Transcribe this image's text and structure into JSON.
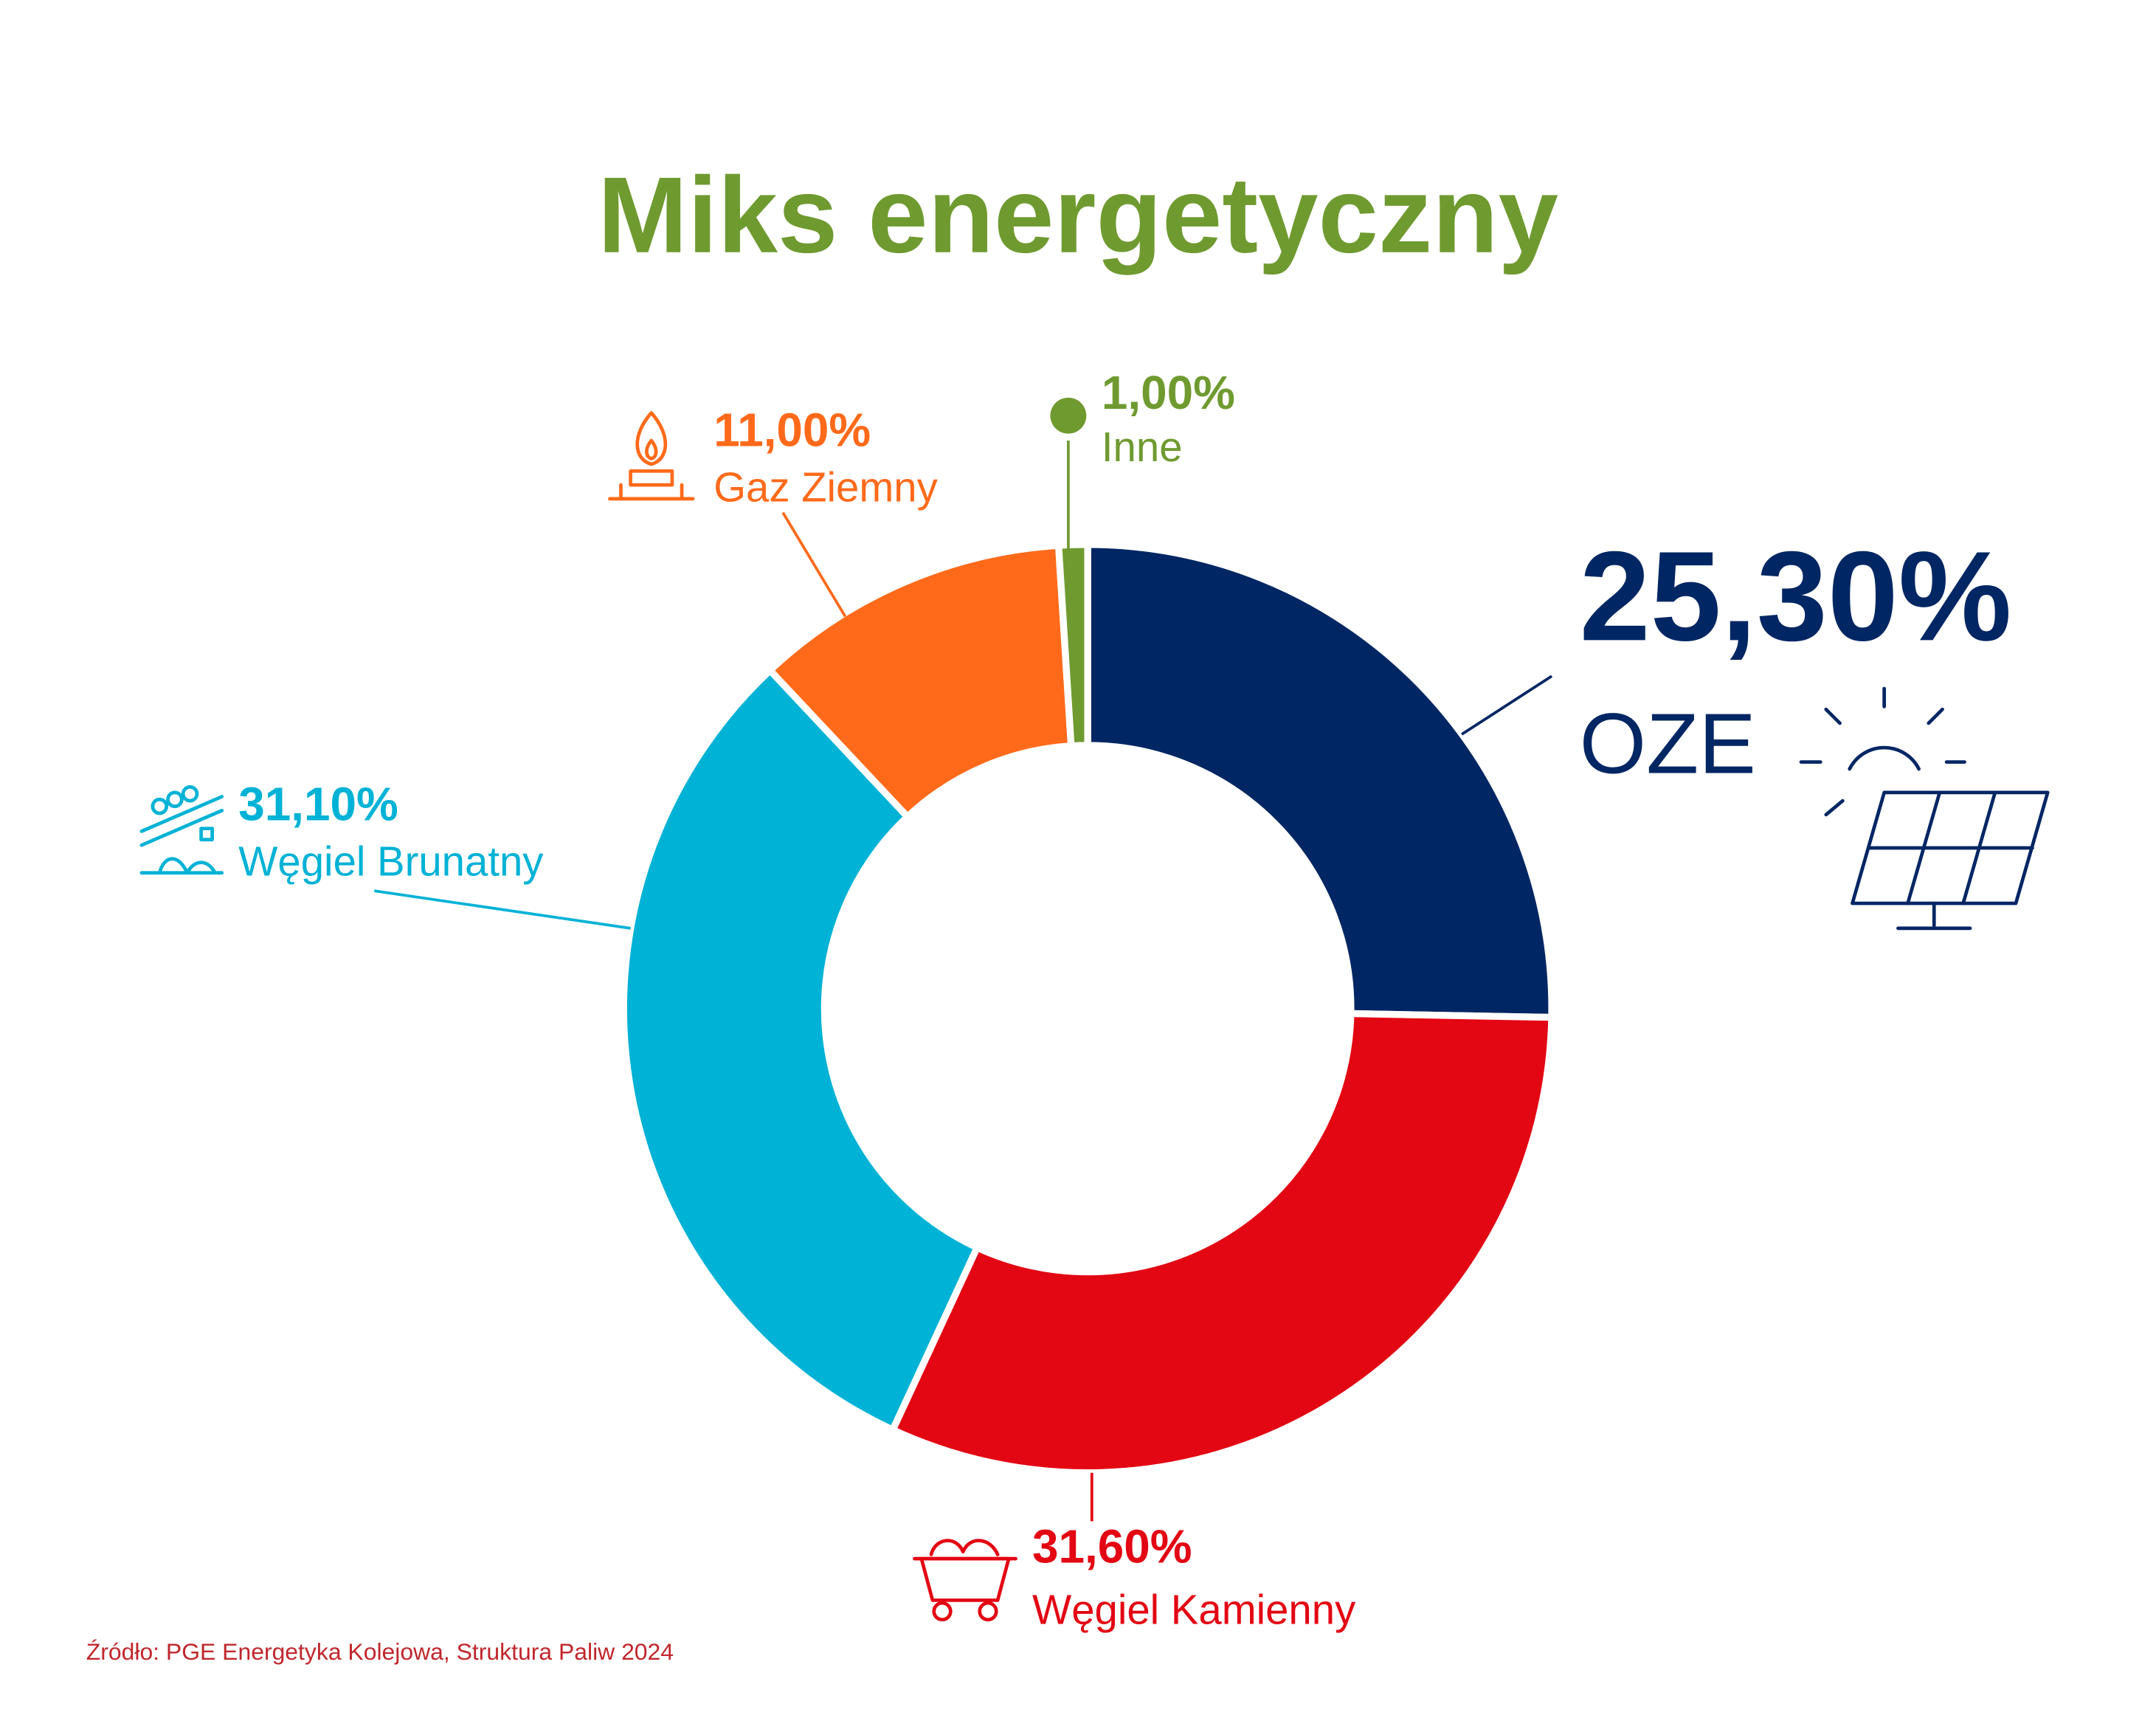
{
  "chart_data": {
    "type": "donut",
    "title": "Miks energetyczny",
    "categories": [
      "OZE",
      "Węgiel Kamienny",
      "Węgiel Brunatny",
      "Gaz Ziemny",
      "Inne"
    ],
    "values": [
      25.3,
      31.6,
      31.1,
      11.0,
      1.0
    ],
    "value_labels": [
      "25,30%",
      "31,60%",
      "31,10%",
      "11,00%",
      "1,00%"
    ],
    "colors": [
      "#002663",
      "#e30613",
      "#00b2d6",
      "#ff6a1a",
      "#6f9a30"
    ],
    "source": "Źródło: PGE Energetyka Kolejowa, Struktura Paliw 2024"
  }
}
